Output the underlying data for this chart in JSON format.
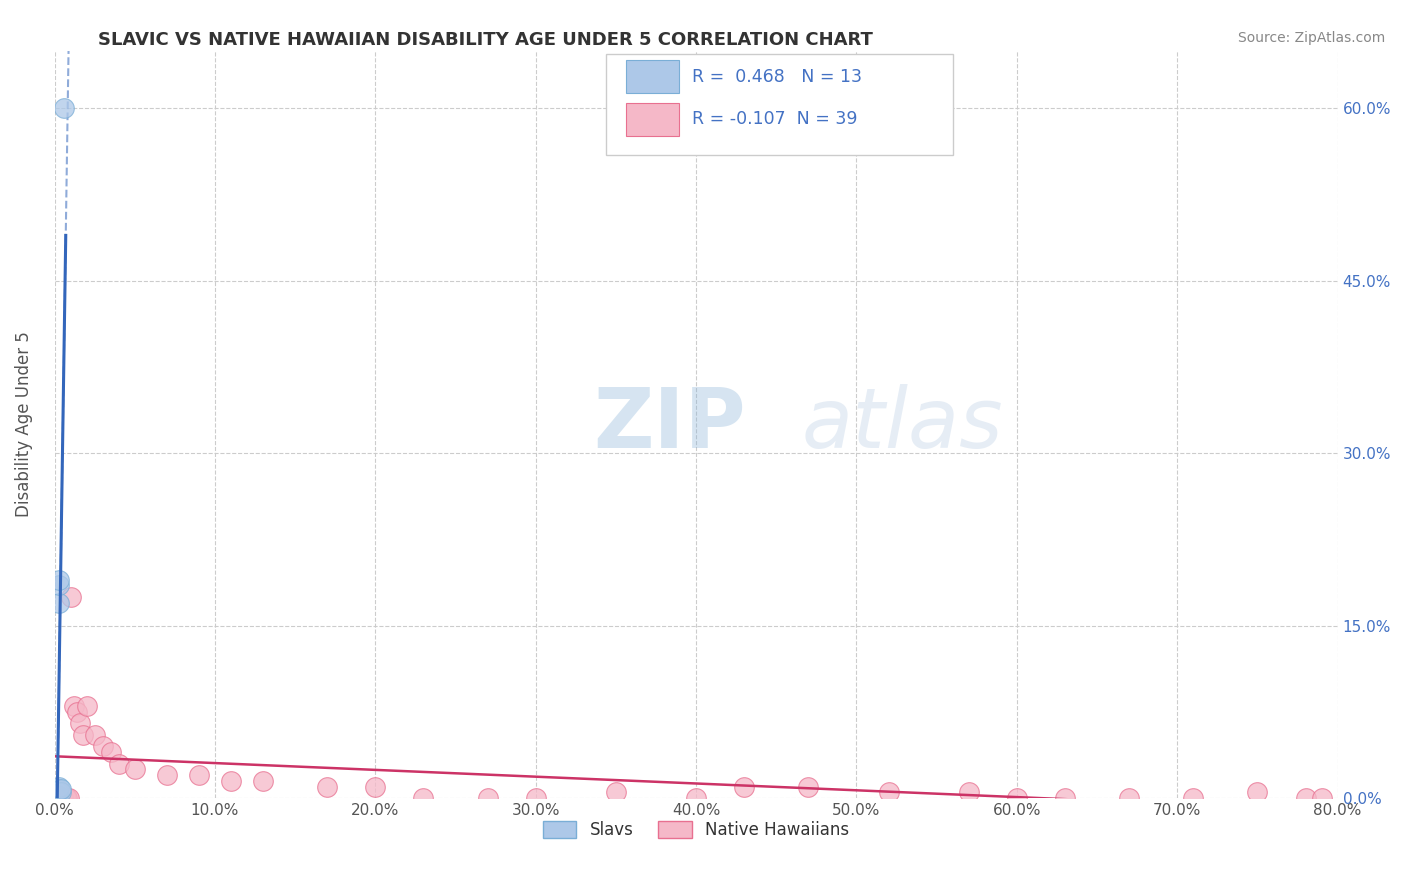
{
  "title": "SLAVIC VS NATIVE HAWAIIAN DISABILITY AGE UNDER 5 CORRELATION CHART",
  "source": "Source: ZipAtlas.com",
  "ylabel": "Disability Age Under 5",
  "xlim": [
    0.0,
    0.8
  ],
  "ylim": [
    0.0,
    0.65
  ],
  "xticks": [
    0.0,
    0.1,
    0.2,
    0.3,
    0.4,
    0.5,
    0.6,
    0.7,
    0.8
  ],
  "xticklabels": [
    "0.0%",
    "10.0%",
    "20.0%",
    "30.0%",
    "40.0%",
    "50.0%",
    "60.0%",
    "70.0%",
    "80.0%"
  ],
  "yticks": [
    0.0,
    0.15,
    0.3,
    0.45,
    0.6
  ],
  "yticklabels": [
    "0.0%",
    "15.0%",
    "30.0%",
    "45.0%",
    "60.0%"
  ],
  "slavs_x": [
    0.001,
    0.001,
    0.0015,
    0.002,
    0.002,
    0.002,
    0.0025,
    0.003,
    0.003,
    0.003,
    0.004,
    0.004,
    0.006
  ],
  "slavs_y": [
    0.0,
    0.002,
    0.003,
    0.003,
    0.005,
    0.008,
    0.01,
    0.17,
    0.185,
    0.19,
    0.005,
    0.008,
    0.6
  ],
  "slavs_color": "#adc8e8",
  "slavs_edge": "#7aaed6",
  "nh_x": [
    0.003,
    0.005,
    0.005,
    0.007,
    0.008,
    0.009,
    0.01,
    0.012,
    0.014,
    0.016,
    0.018,
    0.02,
    0.025,
    0.03,
    0.035,
    0.04,
    0.05,
    0.07,
    0.09,
    0.11,
    0.13,
    0.17,
    0.2,
    0.23,
    0.27,
    0.3,
    0.35,
    0.4,
    0.43,
    0.47,
    0.52,
    0.57,
    0.6,
    0.63,
    0.67,
    0.71,
    0.75,
    0.78,
    0.79
  ],
  "nh_y": [
    0.0,
    0.0,
    0.0,
    0.0,
    0.0,
    0.0,
    0.175,
    0.08,
    0.075,
    0.065,
    0.055,
    0.08,
    0.055,
    0.045,
    0.04,
    0.03,
    0.025,
    0.02,
    0.02,
    0.015,
    0.015,
    0.01,
    0.01,
    0.0,
    0.0,
    0.0,
    0.005,
    0.0,
    0.01,
    0.01,
    0.005,
    0.005,
    0.0,
    0.0,
    0.0,
    0.0,
    0.005,
    0.0,
    0.0
  ],
  "nh_color": "#f5b8c8",
  "nh_edge": "#e87090",
  "slavs_R": 0.468,
  "slavs_N": 13,
  "nh_R": -0.107,
  "nh_N": 39,
  "trendline_slav_color": "#3366bb",
  "trendline_nh_color": "#cc3366",
  "watermark_zip": "ZIP",
  "watermark_atlas": "atlas",
  "background_color": "#ffffff",
  "grid_color": "#cccccc",
  "legend_box_color": "#cccccc",
  "title_color": "#333333",
  "tick_color": "#555555",
  "right_tick_color": "#4472c4",
  "source_color": "#888888"
}
